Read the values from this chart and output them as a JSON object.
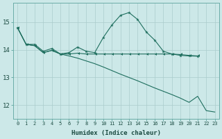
{
  "xlabel": "Humidex (Indice chaleur)",
  "bg_color": "#cce8e8",
  "grid_color": "#aacccc",
  "line_color": "#1e6e5e",
  "x": [
    0,
    1,
    2,
    3,
    4,
    5,
    6,
    7,
    8,
    9,
    10,
    11,
    12,
    13,
    14,
    15,
    16,
    17,
    18,
    19,
    20,
    21,
    22,
    23
  ],
  "curve_peak": [
    14.8,
    14.2,
    14.2,
    13.95,
    14.05,
    13.85,
    13.9,
    14.1,
    13.95,
    13.9,
    14.45,
    14.9,
    15.25,
    15.35,
    15.1,
    14.65,
    14.35,
    13.95,
    13.85,
    13.8,
    13.78,
    13.77,
    null,
    null
  ],
  "curve_flat": [
    14.8,
    14.2,
    14.15,
    13.9,
    13.98,
    13.85,
    13.85,
    13.88,
    13.85,
    13.85,
    13.85,
    13.85,
    13.85,
    13.85,
    13.85,
    13.85,
    13.85,
    13.85,
    13.85,
    13.83,
    13.8,
    13.78,
    null,
    null
  ],
  "curve_diag": [
    14.8,
    14.2,
    14.15,
    13.9,
    13.98,
    13.85,
    13.78,
    13.7,
    13.6,
    13.5,
    13.38,
    13.25,
    13.12,
    13.0,
    12.88,
    12.75,
    12.62,
    12.5,
    12.38,
    12.25,
    12.1,
    12.32,
    11.8,
    11.75
  ],
  "ylim": [
    11.5,
    15.7
  ],
  "yticks": [
    12,
    13,
    14,
    15
  ],
  "xticks": [
    0,
    1,
    2,
    3,
    4,
    5,
    6,
    7,
    8,
    9,
    10,
    11,
    12,
    13,
    14,
    15,
    16,
    17,
    18,
    19,
    20,
    21,
    22,
    23
  ]
}
